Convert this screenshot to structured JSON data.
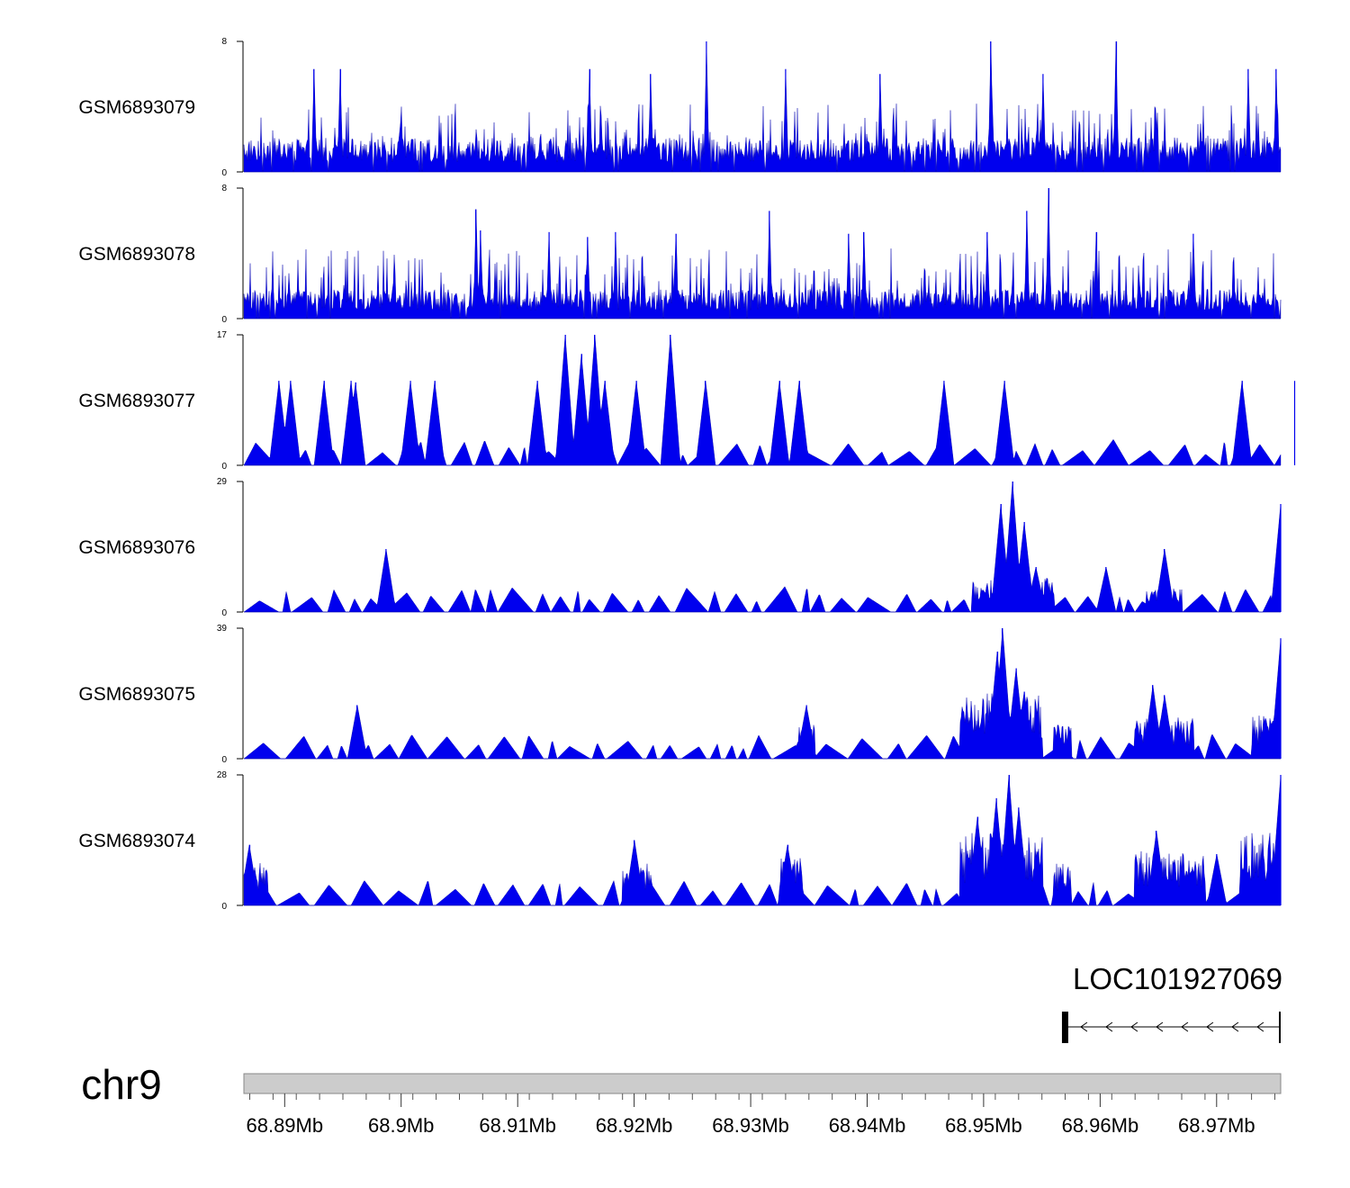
{
  "chart_data": {
    "type": "area",
    "title": "",
    "xlabel": "",
    "ylabel": "",
    "chromosome": "chr9",
    "xlim": [
      68.8865,
      68.9755
    ],
    "x_unit": "Mb",
    "x_ticks": [
      68.89,
      68.9,
      68.91,
      68.92,
      68.93,
      68.94,
      68.95,
      68.96,
      68.97
    ],
    "x_tick_labels": [
      "68.89Mb",
      "68.9Mb",
      "68.91Mb",
      "68.92Mb",
      "68.93Mb",
      "68.94Mb",
      "68.95Mb",
      "68.96Mb",
      "68.97Mb"
    ],
    "series_color": "#0000ee",
    "tracks": [
      {
        "name": "GSM6893079",
        "ymax": 8,
        "ytick_min": "0",
        "ytick_max": "8",
        "baseline": 0.6,
        "noise": 1.5,
        "spike_p": 0.12,
        "spike_range": [
          2.0,
          4.2
        ],
        "peaks": [
          [
            68.8925,
            6.3
          ],
          [
            68.8948,
            6.3
          ],
          [
            68.9162,
            6.3
          ],
          [
            68.9214,
            6.0
          ],
          [
            68.9262,
            8.0
          ],
          [
            68.933,
            6.3
          ],
          [
            68.9411,
            6.0
          ],
          [
            68.9506,
            8.0
          ],
          [
            68.9551,
            6.0
          ],
          [
            68.9614,
            8.0
          ],
          [
            68.9727,
            6.3
          ],
          [
            68.9751,
            6.3
          ]
        ],
        "regions": [
          [
            68.9505,
            68.9525,
            1.2
          ]
        ]
      },
      {
        "name": "GSM6893078",
        "ymax": 8,
        "ytick_min": "0",
        "ytick_max": "8",
        "baseline": 0.5,
        "noise": 1.3,
        "spike_p": 0.12,
        "spike_range": [
          2.0,
          4.3
        ],
        "peaks": [
          [
            68.9064,
            6.7
          ],
          [
            68.9068,
            5.4
          ],
          [
            68.9127,
            5.3
          ],
          [
            68.916,
            5.0
          ],
          [
            68.9184,
            5.3
          ],
          [
            68.9236,
            5.2
          ],
          [
            68.9316,
            6.6
          ],
          [
            68.9384,
            5.2
          ],
          [
            68.9397,
            5.3
          ],
          [
            68.9503,
            5.3
          ],
          [
            68.9537,
            6.6
          ],
          [
            68.9556,
            8.0
          ],
          [
            68.9597,
            5.3
          ],
          [
            68.968,
            5.2
          ]
        ],
        "regions": []
      },
      {
        "name": "GSM6893077",
        "ymax": 17,
        "ytick_min": "0",
        "ytick_max": "17",
        "baseline": 0.0,
        "noise": 0.0,
        "spike_p": 0.0,
        "spike_range": [
          0,
          0
        ],
        "sparse": true,
        "peaks": [
          [
            68.8895,
            11.0
          ],
          [
            68.8905,
            11.0
          ],
          [
            68.8934,
            11.0
          ],
          [
            68.8957,
            11.0
          ],
          [
            68.8961,
            10.8
          ],
          [
            68.9008,
            11.0
          ],
          [
            68.9029,
            11.0
          ],
          [
            68.9117,
            11.0
          ],
          [
            68.9141,
            17.0
          ],
          [
            68.9155,
            14.5
          ],
          [
            68.9166,
            17.0
          ],
          [
            68.9175,
            11.0
          ],
          [
            68.9202,
            11.0
          ],
          [
            68.9231,
            17.0
          ],
          [
            68.9261,
            11.0
          ],
          [
            68.9325,
            11.0
          ],
          [
            68.9342,
            11.0
          ],
          [
            68.9466,
            11.0
          ],
          [
            68.9518,
            11.0
          ],
          [
            68.9722,
            11.0
          ],
          [
            68.9767,
            11.0
          ]
        ],
        "regions": []
      },
      {
        "name": "GSM6893076",
        "ymax": 29,
        "ytick_min": "0",
        "ytick_max": "29",
        "baseline": 0.0,
        "noise": 0.0,
        "spike_p": 0.0,
        "spike_range": [
          0,
          0
        ],
        "sparse": true,
        "peaks": [
          [
            68.8987,
            14.0
          ],
          [
            68.9515,
            24.0
          ],
          [
            68.9525,
            29.0
          ],
          [
            68.9535,
            20.0
          ],
          [
            68.9545,
            10.0
          ],
          [
            68.9605,
            10.0
          ],
          [
            68.9655,
            14.0
          ],
          [
            68.9755,
            24.0
          ]
        ],
        "regions": [
          [
            68.949,
            68.956,
            6.0
          ],
          [
            68.964,
            68.967,
            4.0
          ]
        ]
      },
      {
        "name": "GSM6893075",
        "ymax": 39,
        "ytick_min": "0",
        "ytick_max": "39",
        "baseline": 0.0,
        "noise": 0.0,
        "spike_p": 0.0,
        "spike_range": [
          0,
          0
        ],
        "sparse": true,
        "peaks": [
          [
            68.8962,
            16.0
          ],
          [
            68.9348,
            16.0
          ],
          [
            68.9512,
            32.0
          ],
          [
            68.9516,
            39.0
          ],
          [
            68.9528,
            27.0
          ],
          [
            68.9535,
            20.0
          ],
          [
            68.9645,
            22.0
          ],
          [
            68.9655,
            19.0
          ],
          [
            68.9742,
            12.0
          ],
          [
            68.9755,
            36.0
          ]
        ],
        "regions": [
          [
            68.934,
            68.9355,
            8.0
          ],
          [
            68.948,
            68.955,
            15.0
          ],
          [
            68.956,
            68.9575,
            8.0
          ],
          [
            68.963,
            68.968,
            10.0
          ],
          [
            68.973,
            68.9757,
            10.0
          ]
        ]
      },
      {
        "name": "GSM6893074",
        "ymax": 28,
        "ytick_min": "0",
        "ytick_max": "28",
        "baseline": 0.0,
        "noise": 0.0,
        "spike_p": 0.0,
        "spike_range": [
          0,
          0
        ],
        "sparse": true,
        "peaks": [
          [
            68.887,
            13.0
          ],
          [
            68.92,
            14.0
          ],
          [
            68.9332,
            13.0
          ],
          [
            68.9495,
            19.0
          ],
          [
            68.9511,
            23.0
          ],
          [
            68.9522,
            28.0
          ],
          [
            68.953,
            21.0
          ],
          [
            68.9648,
            16.0
          ],
          [
            68.97,
            11.0
          ],
          [
            68.9755,
            28.0
          ]
        ],
        "regions": [
          [
            68.8865,
            68.8885,
            8.0
          ],
          [
            68.919,
            68.9215,
            7.0
          ],
          [
            68.9325,
            68.9345,
            8.0
          ],
          [
            68.948,
            68.955,
            12.0
          ],
          [
            68.956,
            68.9575,
            7.0
          ],
          [
            68.963,
            68.969,
            9.0
          ],
          [
            68.972,
            68.9757,
            12.0
          ]
        ]
      }
    ],
    "gene": {
      "name": "LOC101927069",
      "start": 68.9568,
      "end": 68.9755,
      "strand": "-"
    }
  }
}
